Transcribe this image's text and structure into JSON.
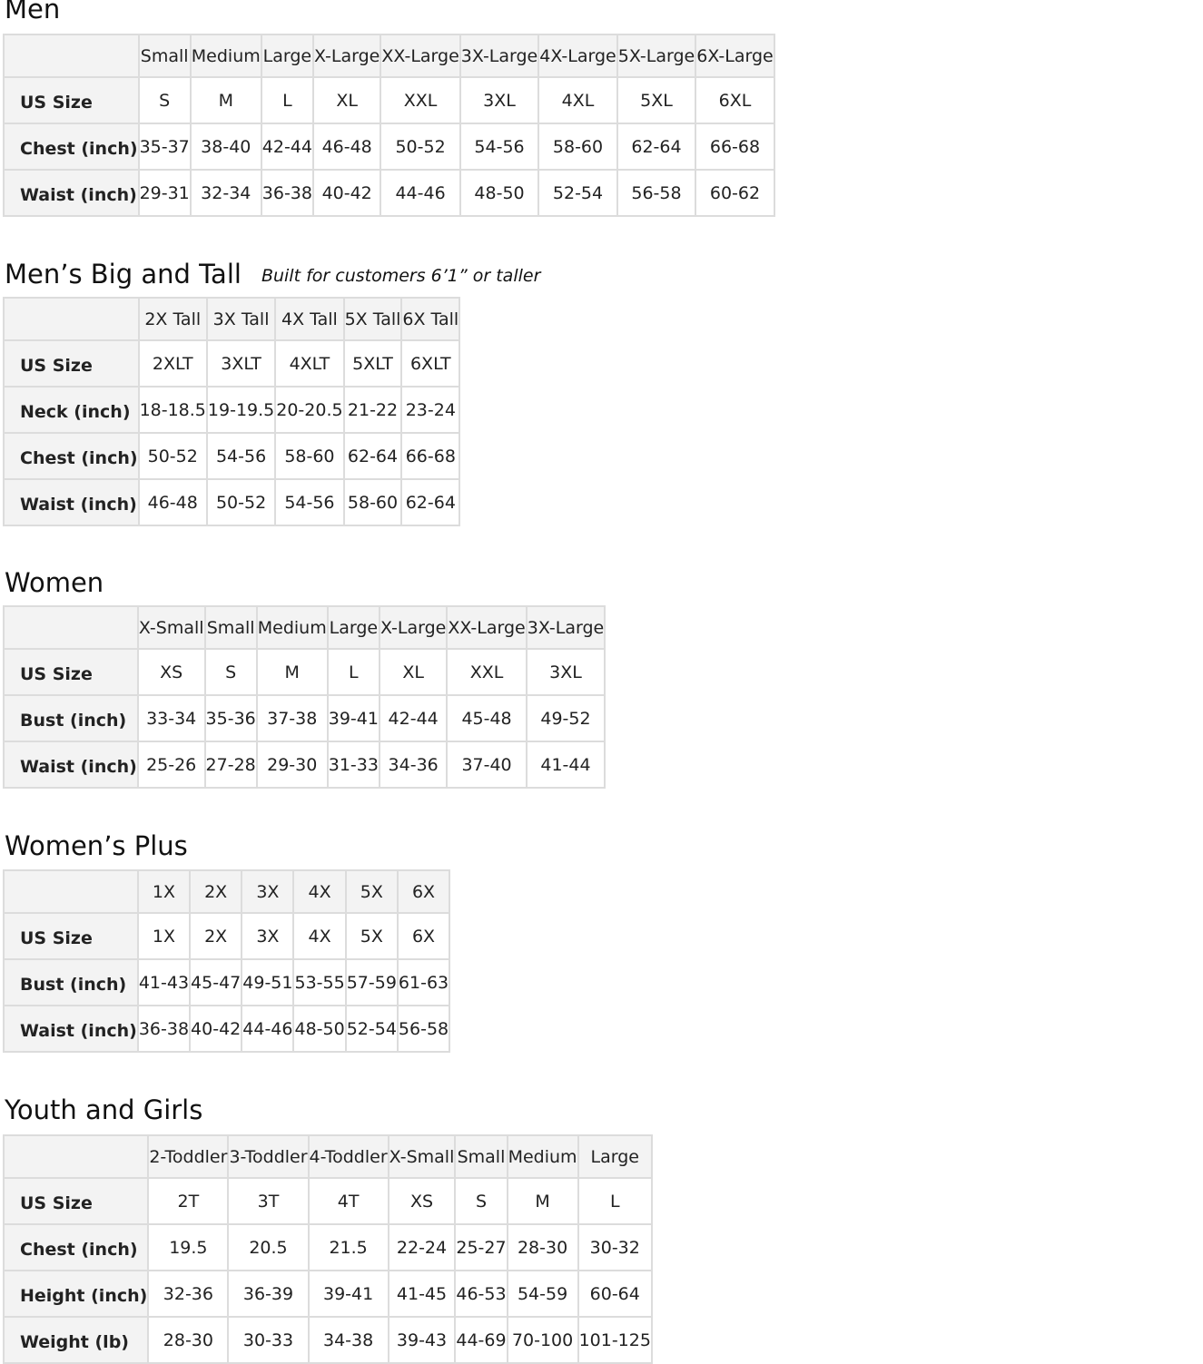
{
  "sections": [
    {
      "title": "Men",
      "subtitle": "",
      "columns": [
        "Small",
        "Medium",
        "Large",
        "X-Large",
        "XX-Large",
        "3X-Large",
        "4X-Large",
        "5X-Large",
        "6X-Large"
      ],
      "rows": [
        {
          "label": "US Size",
          "values": [
            "S",
            "M",
            "L",
            "XL",
            "XXL",
            "3XL",
            "4XL",
            "5XL",
            "6XL"
          ]
        },
        {
          "label": "Chest (inch)",
          "values": [
            "35-37",
            "38-40",
            "42-44",
            "46-48",
            "50-52",
            "54-56",
            "58-60",
            "62-64",
            "66-68"
          ]
        },
        {
          "label": "Waist (inch)",
          "values": [
            "29-31",
            "32-34",
            "36-38",
            "40-42",
            "44-46",
            "48-50",
            "52-54",
            "56-58",
            "60-62"
          ]
        }
      ]
    },
    {
      "title": "Men’s Big and Tall",
      "subtitle": "Built for customers 6’1” or taller",
      "columns": [
        "2X Tall",
        "3X Tall",
        "4X Tall",
        "5X Tall",
        "6X Tall"
      ],
      "rows": [
        {
          "label": "US Size",
          "values": [
            "2XLT",
            "3XLT",
            "4XLT",
            "5XLT",
            "6XLT"
          ]
        },
        {
          "label": "Neck (inch)",
          "values": [
            "18-18.5",
            "19-19.5",
            "20-20.5",
            "21-22",
            "23-24"
          ]
        },
        {
          "label": "Chest (inch)",
          "values": [
            "50-52",
            "54-56",
            "58-60",
            "62-64",
            "66-68"
          ]
        },
        {
          "label": "Waist (inch)",
          "values": [
            "46-48",
            "50-52",
            "54-56",
            "58-60",
            "62-64"
          ]
        }
      ]
    },
    {
      "title": "Women",
      "subtitle": "",
      "columns": [
        "X-Small",
        "Small",
        "Medium",
        "Large",
        "X-Large",
        "XX-Large",
        "3X-Large"
      ],
      "rows": [
        {
          "label": "US Size",
          "values": [
            "XS",
            "S",
            "M",
            "L",
            "XL",
            "XXL",
            "3XL"
          ]
        },
        {
          "label": "Bust (inch)",
          "values": [
            "33-34",
            "35-36",
            "37-38",
            "39-41",
            "42-44",
            "45-48",
            "49-52"
          ]
        },
        {
          "label": "Waist (inch)",
          "values": [
            "25-26",
            "27-28",
            "29-30",
            "31-33",
            "34-36",
            "37-40",
            "41-44"
          ]
        }
      ]
    },
    {
      "title": "Women’s  Plus",
      "subtitle": "",
      "columns": [
        "1X",
        "2X",
        "3X",
        "4X",
        "5X",
        "6X"
      ],
      "rows": [
        {
          "label": "US Size",
          "values": [
            "1X",
            "2X",
            "3X",
            "4X",
            "5X",
            "6X"
          ]
        },
        {
          "label": "Bust (inch)",
          "values": [
            "41-43",
            "45-47",
            "49-51",
            "53-55",
            "57-59",
            "61-63"
          ]
        },
        {
          "label": "Waist (inch)",
          "values": [
            "36-38",
            "40-42",
            "44-46",
            "48-50",
            "52-54",
            "56-58"
          ]
        }
      ]
    },
    {
      "title": "Youth and Girls",
      "subtitle": "",
      "columns": [
        "2-Toddler",
        "3-Toddler",
        "4-Toddler",
        "X-Small",
        "Small",
        "Medium",
        "Large"
      ],
      "rows": [
        {
          "label": "US Size",
          "values": [
            "2T",
            "3T",
            "4T",
            "XS",
            "S",
            "M",
            "L"
          ]
        },
        {
          "label": "Chest (inch)",
          "values": [
            "19.5",
            "20.5",
            "21.5",
            "22-24",
            "25-27",
            "28-30",
            "30-32"
          ]
        },
        {
          "label": "Height (inch)",
          "values": [
            "32-36",
            "36-39",
            "39-41",
            "41-45",
            "46-53",
            "54-59",
            "60-64"
          ]
        },
        {
          "label": "Weight (lb)",
          "values": [
            "28-30",
            "30-33",
            "34-38",
            "39-43",
            "44-69",
            "70-100",
            "101-125"
          ]
        }
      ]
    }
  ],
  "colors": {
    "header_bg": "#f3f3f3",
    "border": "#dcdcdc",
    "text": "#222222"
  }
}
